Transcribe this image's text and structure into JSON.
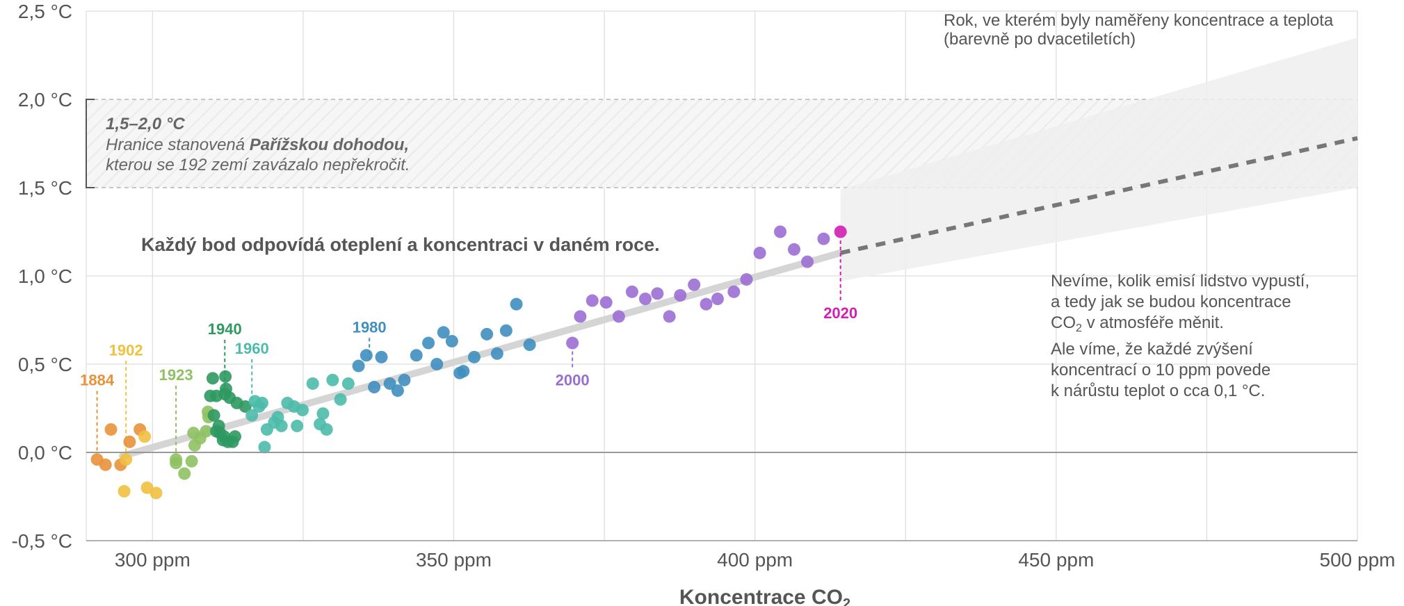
{
  "chart_data": {
    "type": "scatter",
    "title": "",
    "xlabel": "Koncentrace CO",
    "xlabel_sub": "2",
    "ylabel": "",
    "xlim": [
      289,
      500
    ],
    "ylim": [
      -0.5,
      2.5
    ],
    "x_ticks": [
      300,
      350,
      400,
      450,
      500
    ],
    "x_tick_labels": [
      "300 ppm",
      "350 ppm",
      "400 ppm",
      "450 ppm",
      "500 ppm"
    ],
    "y_ticks": [
      -0.5,
      0.0,
      0.5,
      1.0,
      1.5,
      2.0,
      2.5
    ],
    "y_tick_labels": [
      "-0,5 °C",
      "0,0 °C",
      "0,5 °C",
      "1,0 °C",
      "1,5 °C",
      "2,0 °C",
      "2,5 °C"
    ],
    "grid": true,
    "colors": {
      "1880s": "#e8923a",
      "1900s": "#f0c040",
      "1920s": "#8fc162",
      "1940s": "#2e9960",
      "1960s": "#4dbbaa",
      "1980s": "#3f8fbf",
      "2000s": "#9b6ed4",
      "2020": "#d21fb3",
      "trend": "#d5d5d5",
      "projection": "#777777",
      "uncertainty": "#eeeeee",
      "band": "#f5f5f5"
    },
    "series": [
      {
        "key": "1880s",
        "points": [
          [
            290.8,
            -0.04
          ],
          [
            292.2,
            -0.07
          ],
          [
            293.1,
            0.13
          ],
          [
            294.7,
            -0.07
          ],
          [
            296.2,
            0.06
          ],
          [
            297.9,
            0.13
          ]
        ]
      },
      {
        "key": "1900s",
        "points": [
          [
            295.3,
            -0.22
          ],
          [
            295.6,
            -0.04
          ],
          [
            298.7,
            0.09
          ],
          [
            299.1,
            -0.2
          ],
          [
            300.6,
            -0.23
          ]
        ]
      },
      {
        "key": "1920s",
        "points": [
          [
            303.9,
            -0.06
          ],
          [
            303.9,
            -0.04
          ],
          [
            305.3,
            -0.12
          ],
          [
            306.5,
            -0.05
          ],
          [
            306.8,
            0.11
          ],
          [
            307.0,
            0.04
          ],
          [
            307.9,
            0.08
          ],
          [
            308.9,
            0.12
          ],
          [
            309.2,
            0.23
          ],
          [
            309.3,
            0.2
          ]
        ]
      },
      {
        "key": "1940s",
        "points": [
          [
            309.6,
            0.32
          ],
          [
            310.0,
            0.42
          ],
          [
            310.2,
            0.21
          ],
          [
            310.6,
            0.32
          ],
          [
            310.6,
            0.12
          ],
          [
            311.0,
            0.15
          ],
          [
            311.2,
            0.11
          ],
          [
            311.7,
            0.07
          ],
          [
            311.9,
            0.09
          ],
          [
            312.0,
            0.33
          ],
          [
            312.1,
            0.43
          ],
          [
            312.2,
            0.36
          ],
          [
            312.5,
            0.06
          ],
          [
            312.8,
            0.31
          ],
          [
            313.3,
            0.06
          ],
          [
            313.7,
            0.09
          ],
          [
            314.0,
            0.28
          ],
          [
            315.4,
            0.26
          ]
        ]
      },
      {
        "key": "1960s",
        "points": [
          [
            316.5,
            0.21
          ],
          [
            317.0,
            0.29
          ],
          [
            317.7,
            0.26
          ],
          [
            318.2,
            0.28
          ],
          [
            318.6,
            0.03
          ],
          [
            319.0,
            0.13
          ],
          [
            320.2,
            0.17
          ],
          [
            320.8,
            0.2
          ],
          [
            321.4,
            0.15
          ],
          [
            322.4,
            0.28
          ],
          [
            323.5,
            0.26
          ],
          [
            324.0,
            0.15
          ],
          [
            324.9,
            0.24
          ],
          [
            326.6,
            0.39
          ],
          [
            327.8,
            0.16
          ],
          [
            328.3,
            0.22
          ],
          [
            328.9,
            0.13
          ],
          [
            329.9,
            0.41
          ],
          [
            331.2,
            0.3
          ],
          [
            332.5,
            0.39
          ]
        ]
      },
      {
        "key": "1980s",
        "points": [
          [
            334.2,
            0.49
          ],
          [
            335.5,
            0.55
          ],
          [
            336.8,
            0.37
          ],
          [
            338.0,
            0.54
          ],
          [
            339.4,
            0.39
          ],
          [
            340.7,
            0.35
          ],
          [
            341.8,
            0.41
          ],
          [
            343.8,
            0.55
          ],
          [
            345.8,
            0.62
          ],
          [
            347.2,
            0.5
          ],
          [
            348.3,
            0.68
          ],
          [
            349.7,
            0.63
          ],
          [
            351.0,
            0.45
          ],
          [
            351.6,
            0.46
          ],
          [
            353.4,
            0.54
          ],
          [
            355.5,
            0.67
          ],
          [
            357.2,
            0.56
          ],
          [
            358.7,
            0.69
          ],
          [
            360.4,
            0.84
          ],
          [
            362.6,
            0.61
          ]
        ]
      },
      {
        "key": "2000s",
        "points": [
          [
            369.7,
            0.62
          ],
          [
            371.0,
            0.77
          ],
          [
            373.0,
            0.86
          ],
          [
            375.3,
            0.85
          ],
          [
            377.4,
            0.77
          ],
          [
            379.6,
            0.91
          ],
          [
            381.8,
            0.87
          ],
          [
            383.8,
            0.9
          ],
          [
            385.8,
            0.77
          ],
          [
            387.6,
            0.89
          ],
          [
            389.9,
            0.95
          ],
          [
            391.9,
            0.84
          ],
          [
            393.8,
            0.87
          ],
          [
            396.5,
            0.91
          ],
          [
            398.6,
            0.98
          ],
          [
            400.8,
            1.13
          ],
          [
            404.2,
            1.25
          ],
          [
            406.5,
            1.15
          ],
          [
            408.7,
            1.08
          ],
          [
            411.4,
            1.21
          ]
        ]
      },
      {
        "key": "2020",
        "points": [
          [
            414.2,
            1.25
          ]
        ]
      }
    ],
    "year_labels": [
      {
        "text": "1884",
        "x": 290.8,
        "y": -0.04,
        "label_y": 0.38,
        "color": "#e8923a"
      },
      {
        "text": "1902",
        "x": 295.6,
        "y": -0.04,
        "label_y": 0.55,
        "color": "#f0c040"
      },
      {
        "text": "1923",
        "x": 303.9,
        "y": -0.04,
        "label_y": 0.41,
        "color": "#8fc162"
      },
      {
        "text": "1940",
        "x": 312.0,
        "y": 0.33,
        "label_y": 0.67,
        "color": "#2e9960"
      },
      {
        "text": "1960",
        "x": 316.5,
        "y": 0.21,
        "label_y": 0.56,
        "color": "#4dbbaa"
      },
      {
        "text": "1980",
        "x": 336.0,
        "y": 0.49,
        "label_y": 0.68,
        "color": "#3f8fbf"
      },
      {
        "text": "2000",
        "x": 369.7,
        "y": 0.62,
        "label_y": 0.38,
        "color": "#9b6ed4"
      },
      {
        "text": "2020",
        "x": 414.2,
        "y": 1.25,
        "label_y": 0.76,
        "color": "#d21fb3"
      }
    ],
    "trend_line": [
      [
        295,
        -0.02
      ],
      [
        414.2,
        1.13
      ]
    ],
    "projection_line": [
      [
        414.2,
        1.13
      ],
      [
        500,
        1.78
      ]
    ],
    "projection_range": {
      "x_start": 414.2,
      "lower_start": 0.97,
      "upper_start": 1.49,
      "x_end": 500,
      "lower_end": 1.5,
      "upper_end": 2.35
    },
    "paris_band": {
      "y_from": 1.5,
      "y_to": 2.0
    }
  },
  "annotations": {
    "legend_line1": "Rok, ve kterém byly naměřeny koncentrace a teplota",
    "legend_line2": "(barevně po dvacetiletích)",
    "band_title": "1,5–2,0 °C",
    "band_line1_a": "Hranice stanovená ",
    "band_line1_b": "Pařížskou dohodou,",
    "band_line2": "kterou se 192 zemí zavázalo nepřekročit.",
    "headline": "Každý bod odpovídá oteplení a koncentraci v daném roce.",
    "note_line1": "Nevíme, kolik emisí lidstvo vypustí,",
    "note_line2": "a tedy jak se budou koncentrace",
    "note_line3_a": "CO",
    "note_line3_sub": "2",
    "note_line3_b": " v atmosféře měnit.",
    "note_line4": "Ale víme, že každé zvýšení",
    "note_line5": "koncentrací o 10 ppm povede",
    "note_line6": "k nárůstu teplot o cca 0,1 °C."
  }
}
